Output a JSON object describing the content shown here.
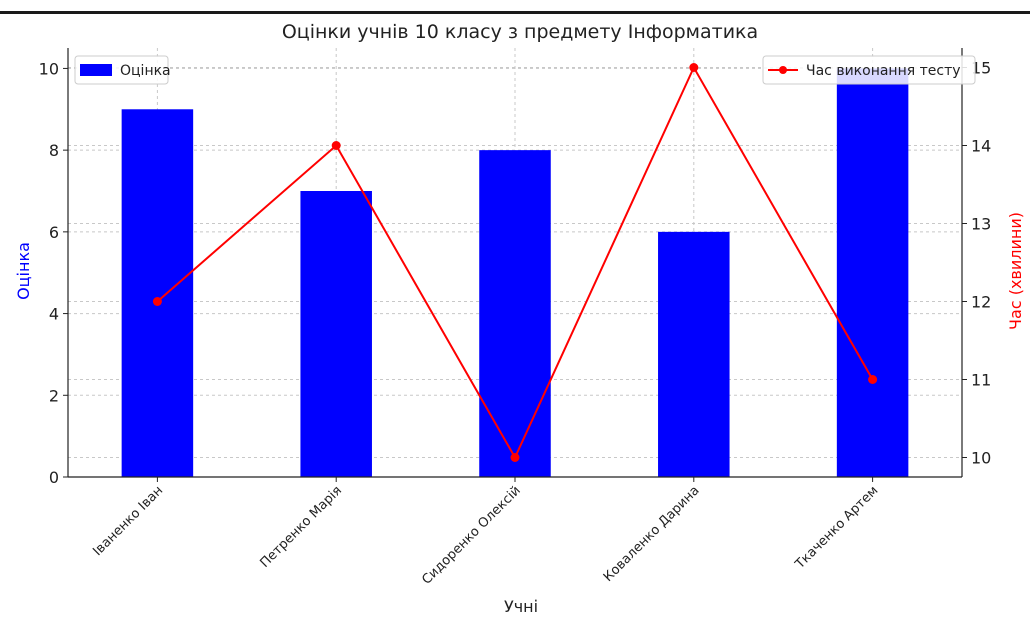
{
  "chart_data": {
    "type": "bar",
    "title": "Оцінки учнів 10 класу з предмету Інформатика",
    "xlabel": "Учні",
    "categories": [
      "Іваненко Іван",
      "Петренко Марія",
      "Сидоренко Олексій",
      "Коваленко Дарина",
      "Ткаченко Артем"
    ],
    "series": [
      {
        "name": "Оцінка",
        "type": "bar",
        "axis": "left",
        "color": "#0000ff",
        "values": [
          9,
          7,
          8,
          6,
          10
        ]
      },
      {
        "name": "Час виконання тесту",
        "type": "line",
        "axis": "right",
        "color": "#ff0000",
        "values": [
          12,
          14,
          10,
          15,
          11
        ]
      }
    ],
    "y_left": {
      "label": "Оцінка",
      "label_color": "#0000ff",
      "range": [
        0,
        10.5
      ],
      "ticks": [
        0,
        2,
        4,
        6,
        8,
        10
      ]
    },
    "y_right": {
      "label": "Час (хвилини)",
      "label_color": "#ff0000",
      "range": [
        9.75,
        15.25
      ],
      "ticks": [
        10,
        11,
        12,
        13,
        14,
        15
      ]
    },
    "grid": true,
    "legend_left": "top-left",
    "legend_right": "top-right"
  }
}
